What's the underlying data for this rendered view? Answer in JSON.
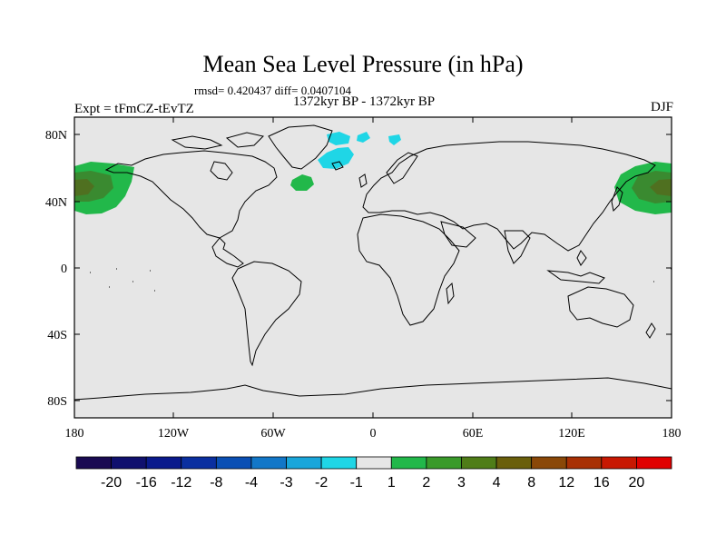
{
  "header": {
    "title": "Mean Sea Level Pressure (in hPa)",
    "stats": "rmsd= 0.420437 diff= 0.0407104",
    "experiment": "Expt = tFmCZ-tEvTZ",
    "period": "1372kyr BP - 1372kyr BP",
    "season": "DJF"
  },
  "axes": {
    "lat_labels": [
      "80N",
      "40N",
      "0",
      "40S",
      "80S"
    ],
    "lon_labels": [
      "180",
      "120W",
      "60W",
      "0",
      "60E",
      "120E",
      "180"
    ]
  },
  "colorbar": {
    "labels": [
      "-20",
      "-16",
      "-12",
      "-8",
      "-4",
      "-3",
      "-2",
      "-1",
      "1",
      "2",
      "3",
      "4",
      "8",
      "12",
      "16",
      "20"
    ],
    "colors": [
      "#1a0a52",
      "#10106e",
      "#0a1a8c",
      "#0a2fa0",
      "#0a4fb4",
      "#1277c8",
      "#19a6da",
      "#1fd6e6",
      "#e6e6e6",
      "#22b84a",
      "#3a9a2a",
      "#4f7d18",
      "#6a5f0c",
      "#8a4808",
      "#a83004",
      "#c81802",
      "#e00000"
    ]
  },
  "map_colors": {
    "background": "#e6e6e6",
    "positive_weak": "#22b84a",
    "positive_mid": "#3a8a30",
    "positive_strong": "#4f7020",
    "negative_weak": "#1fd6e6"
  }
}
